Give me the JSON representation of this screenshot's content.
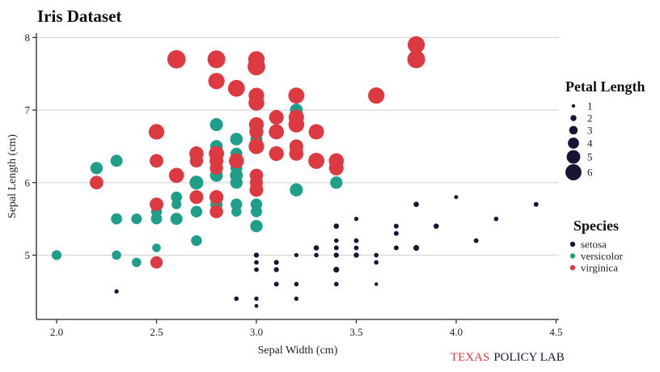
{
  "colors": {
    "setosa": "#1b1333",
    "versicolor": "#1f9e89",
    "virginica": "#dc3a40",
    "grid": "#d6d6d6",
    "axis": "#222222",
    "brand_red": "#dc3a40",
    "brand_navy": "#1b1333"
  },
  "source": {
    "texas": "TEXAS",
    "rest": "POLICY LAB"
  },
  "chart_data": {
    "type": "scatter",
    "title": "Iris Dataset",
    "xlabel": "Sepal Width (cm)",
    "ylabel": "Sepal Length (cm)",
    "xlim": [
      1.9,
      4.5
    ],
    "ylim": [
      4.2,
      8.05
    ],
    "x_ticks": [
      "2.0",
      "2.5",
      "3.0",
      "3.5",
      "4.0",
      "4.5"
    ],
    "y_ticks": [
      "5",
      "6",
      "7",
      "8"
    ],
    "grid": "horizontal",
    "size_legend": {
      "title": "Petal Length",
      "values": [
        "1",
        "2",
        "3",
        "4",
        "5",
        "6"
      ]
    },
    "color_legend": {
      "title": "Species",
      "entries": [
        "setosa",
        "versicolor",
        "virginica"
      ]
    },
    "series": [
      {
        "name": "setosa",
        "points": [
          [
            2.3,
            4.5,
            1.3
          ],
          [
            2.9,
            4.4,
            1.4
          ],
          [
            3.0,
            4.4,
            1.3
          ],
          [
            3.2,
            4.4,
            1.3
          ],
          [
            3.0,
            4.3,
            1.1
          ],
          [
            3.1,
            4.6,
            1.5
          ],
          [
            3.2,
            4.6,
            1.4
          ],
          [
            3.4,
            4.6,
            1.4
          ],
          [
            3.6,
            4.6,
            1.0
          ],
          [
            3.0,
            4.8,
            1.4
          ],
          [
            3.0,
            4.8,
            1.4
          ],
          [
            3.1,
            4.8,
            1.6
          ],
          [
            3.4,
            4.8,
            1.6
          ],
          [
            3.4,
            4.8,
            1.9
          ],
          [
            3.1,
            4.9,
            1.5
          ],
          [
            3.0,
            4.9,
            1.4
          ],
          [
            3.1,
            4.9,
            1.5
          ],
          [
            3.6,
            4.9,
            1.4
          ],
          [
            3.2,
            5.0,
            1.2
          ],
          [
            3.3,
            5.0,
            1.4
          ],
          [
            3.4,
            5.0,
            1.5
          ],
          [
            3.0,
            5.0,
            1.6
          ],
          [
            3.4,
            5.0,
            1.6
          ],
          [
            3.5,
            5.0,
            1.3
          ],
          [
            3.5,
            5.0,
            1.6
          ],
          [
            3.6,
            5.0,
            1.4
          ],
          [
            3.2,
            5.0,
            1.2
          ],
          [
            3.5,
            5.0,
            1.6
          ],
          [
            3.4,
            5.1,
            1.5
          ],
          [
            3.5,
            5.1,
            1.4
          ],
          [
            3.7,
            5.1,
            1.5
          ],
          [
            3.8,
            5.1,
            1.5
          ],
          [
            3.8,
            5.1,
            1.6
          ],
          [
            3.3,
            5.1,
            1.7
          ],
          [
            3.5,
            5.1,
            1.4
          ],
          [
            3.8,
            5.1,
            1.9
          ],
          [
            3.4,
            5.2,
            1.4
          ],
          [
            3.5,
            5.2,
            1.5
          ],
          [
            4.1,
            5.2,
            1.5
          ],
          [
            3.7,
            5.3,
            1.5
          ],
          [
            3.4,
            5.4,
            1.7
          ],
          [
            3.9,
            5.4,
            1.7
          ],
          [
            3.7,
            5.4,
            1.5
          ],
          [
            3.4,
            5.4,
            1.5
          ],
          [
            3.9,
            5.4,
            1.3
          ],
          [
            3.5,
            5.5,
            1.3
          ],
          [
            4.2,
            5.5,
            1.4
          ],
          [
            3.8,
            5.7,
            1.7
          ],
          [
            4.4,
            5.7,
            1.5
          ],
          [
            4.0,
            5.8,
            1.2
          ]
        ]
      },
      {
        "name": "versicolor",
        "points": [
          [
            2.0,
            5.0,
            3.5
          ],
          [
            2.3,
            5.0,
            3.3
          ],
          [
            2.4,
            4.9,
            3.3
          ],
          [
            2.5,
            5.1,
            3.0
          ],
          [
            2.7,
            5.2,
            3.9
          ],
          [
            2.3,
            5.5,
            4.0
          ],
          [
            2.4,
            5.5,
            3.8
          ],
          [
            2.4,
            5.5,
            3.7
          ],
          [
            2.5,
            5.5,
            4.0
          ],
          [
            2.6,
            5.5,
            4.4
          ],
          [
            2.7,
            5.6,
            4.2
          ],
          [
            2.9,
            5.6,
            3.6
          ],
          [
            2.5,
            5.6,
            3.9
          ],
          [
            3.0,
            5.6,
            4.1
          ],
          [
            3.0,
            5.4,
            4.5
          ],
          [
            2.8,
            5.7,
            4.5
          ],
          [
            2.6,
            5.7,
            3.5
          ],
          [
            2.9,
            5.7,
            4.2
          ],
          [
            3.0,
            5.7,
            4.2
          ],
          [
            2.8,
            5.7,
            4.1
          ],
          [
            2.7,
            5.8,
            4.1
          ],
          [
            2.7,
            5.8,
            3.9
          ],
          [
            2.6,
            5.8,
            4.0
          ],
          [
            3.0,
            5.9,
            4.2
          ],
          [
            3.2,
            5.9,
            4.8
          ],
          [
            2.2,
            6.0,
            4.0
          ],
          [
            2.9,
            6.0,
            4.5
          ],
          [
            2.7,
            6.0,
            5.1
          ],
          [
            3.4,
            6.0,
            4.5
          ],
          [
            2.8,
            6.1,
            4.7
          ],
          [
            2.9,
            6.1,
            4.7
          ],
          [
            2.8,
            6.1,
            4.0
          ],
          [
            3.0,
            6.1,
            4.6
          ],
          [
            2.2,
            6.2,
            4.5
          ],
          [
            2.9,
            6.2,
            4.3
          ],
          [
            2.3,
            6.3,
            4.4
          ],
          [
            2.5,
            6.3,
            4.9
          ],
          [
            3.3,
            6.3,
            4.7
          ],
          [
            2.9,
            6.4,
            4.3
          ],
          [
            3.2,
            6.4,
            4.5
          ],
          [
            2.8,
            6.5,
            4.6
          ],
          [
            2.9,
            6.6,
            4.6
          ],
          [
            3.0,
            6.6,
            4.4
          ],
          [
            3.1,
            6.7,
            4.4
          ],
          [
            3.0,
            6.7,
            5.0
          ],
          [
            3.1,
            6.7,
            4.7
          ],
          [
            2.8,
            6.8,
            4.8
          ],
          [
            3.1,
            6.9,
            4.9
          ],
          [
            3.2,
            7.0,
            4.7
          ],
          [
            2.9,
            6.3,
            4.5
          ]
        ]
      },
      {
        "name": "virginica",
        "points": [
          [
            2.5,
            4.9,
            4.5
          ],
          [
            2.5,
            5.7,
            5.0
          ],
          [
            2.8,
            5.6,
            4.9
          ],
          [
            2.8,
            5.8,
            5.1
          ],
          [
            2.7,
            5.8,
            5.1
          ],
          [
            2.8,
            5.8,
            5.1
          ],
          [
            2.2,
            6.0,
            5.0
          ],
          [
            3.0,
            6.0,
            4.8
          ],
          [
            3.0,
            5.9,
            5.1
          ],
          [
            2.6,
            6.1,
            5.6
          ],
          [
            3.0,
            6.1,
            4.9
          ],
          [
            2.8,
            6.2,
            4.8
          ],
          [
            3.4,
            6.2,
            5.4
          ],
          [
            2.5,
            6.3,
            5.0
          ],
          [
            2.7,
            6.3,
            4.9
          ],
          [
            2.9,
            6.3,
            5.6
          ],
          [
            3.3,
            6.3,
            6.0
          ],
          [
            2.8,
            6.3,
            5.1
          ],
          [
            3.4,
            6.3,
            5.6
          ],
          [
            2.8,
            6.4,
            5.6
          ],
          [
            3.2,
            6.4,
            5.3
          ],
          [
            2.7,
            6.4,
            5.3
          ],
          [
            3.1,
            6.4,
            5.5
          ],
          [
            2.8,
            6.4,
            5.6
          ],
          [
            3.0,
            6.5,
            5.8
          ],
          [
            3.0,
            6.5,
            5.5
          ],
          [
            3.2,
            6.5,
            5.1
          ],
          [
            3.0,
            6.5,
            5.2
          ],
          [
            2.5,
            6.7,
            5.8
          ],
          [
            3.3,
            6.7,
            5.7
          ],
          [
            3.0,
            6.7,
            5.2
          ],
          [
            3.1,
            6.7,
            5.6
          ],
          [
            3.2,
            6.8,
            5.9
          ],
          [
            3.0,
            6.8,
            5.5
          ],
          [
            3.1,
            6.9,
            5.1
          ],
          [
            3.2,
            6.9,
            5.7
          ],
          [
            3.1,
            6.9,
            5.4
          ],
          [
            3.0,
            7.1,
            5.9
          ],
          [
            3.2,
            7.2,
            6.0
          ],
          [
            3.6,
            7.2,
            6.1
          ],
          [
            3.0,
            7.2,
            5.8
          ],
          [
            2.9,
            7.3,
            6.3
          ],
          [
            2.8,
            7.4,
            6.1
          ],
          [
            3.0,
            7.6,
            6.6
          ],
          [
            2.8,
            7.7,
            6.7
          ],
          [
            2.6,
            7.7,
            6.9
          ],
          [
            3.0,
            7.7,
            6.1
          ],
          [
            3.8,
            7.7,
            6.7
          ],
          [
            3.8,
            7.9,
            6.4
          ],
          [
            2.8,
            6.2,
            4.8
          ]
        ]
      }
    ]
  }
}
